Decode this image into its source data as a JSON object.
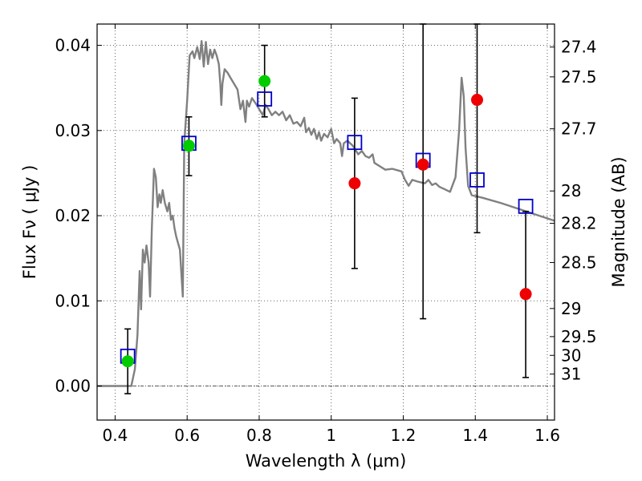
{
  "chart_data": {
    "type": "scatter",
    "title": "",
    "xlabel": "Wavelength  λ (μm)",
    "ylabel": "Flux  Fν  ( μJy )",
    "y2label": "Magnitude (AB)",
    "xlim": [
      0.35,
      1.62
    ],
    "ylim": [
      -0.004,
      0.0425
    ],
    "grid": true,
    "x_ticks": [
      0.4,
      0.6,
      0.8,
      1.0,
      1.2,
      1.4,
      1.6
    ],
    "x_tick_labels": [
      "0.4",
      "0.6",
      "0.8",
      "1",
      "1.2",
      "1.4",
      "1.6"
    ],
    "y_ticks": [
      0.0,
      0.01,
      0.02,
      0.03,
      0.04
    ],
    "y_tick_labels": [
      "0.00",
      "0.01",
      "0.02",
      "0.03",
      "0.04"
    ],
    "y2_ticks": [
      {
        "label": "27.4",
        "flux": 0.0398
      },
      {
        "label": "27.5",
        "flux": 0.0363
      },
      {
        "label": "27.7",
        "flux": 0.0302
      },
      {
        "label": "28",
        "flux": 0.0229
      },
      {
        "label": "28.2",
        "flux": 0.0191
      },
      {
        "label": "28.5",
        "flux": 0.0145
      },
      {
        "label": "29",
        "flux": 0.0091
      },
      {
        "label": "29.5",
        "flux": 0.0058
      },
      {
        "label": "30",
        "flux": 0.0036
      },
      {
        "label": "31",
        "flux": 0.0014
      }
    ],
    "series": [
      {
        "kind": "model_sed",
        "color": "#808080",
        "points": [
          [
            0.35,
            0.0
          ],
          [
            0.43,
            0.0
          ],
          [
            0.445,
            0.0
          ],
          [
            0.455,
            0.002
          ],
          [
            0.462,
            0.006
          ],
          [
            0.468,
            0.0135
          ],
          [
            0.472,
            0.009
          ],
          [
            0.477,
            0.016
          ],
          [
            0.482,
            0.0145
          ],
          [
            0.487,
            0.0165
          ],
          [
            0.493,
            0.0145
          ],
          [
            0.497,
            0.0105
          ],
          [
            0.502,
            0.0185
          ],
          [
            0.508,
            0.0255
          ],
          [
            0.513,
            0.0245
          ],
          [
            0.518,
            0.021
          ],
          [
            0.523,
            0.0225
          ],
          [
            0.527,
            0.0215
          ],
          [
            0.532,
            0.023
          ],
          [
            0.538,
            0.0215
          ],
          [
            0.545,
            0.0205
          ],
          [
            0.55,
            0.0215
          ],
          [
            0.555,
            0.0195
          ],
          [
            0.56,
            0.02
          ],
          [
            0.565,
            0.0185
          ],
          [
            0.57,
            0.0175
          ],
          [
            0.58,
            0.016
          ],
          [
            0.588,
            0.0105
          ],
          [
            0.592,
            0.0285
          ],
          [
            0.6,
            0.0335
          ],
          [
            0.607,
            0.0388
          ],
          [
            0.615,
            0.0393
          ],
          [
            0.62,
            0.0385
          ],
          [
            0.628,
            0.0398
          ],
          [
            0.635,
            0.0384
          ],
          [
            0.64,
            0.0405
          ],
          [
            0.646,
            0.0375
          ],
          [
            0.652,
            0.0404
          ],
          [
            0.658,
            0.0378
          ],
          [
            0.664,
            0.0395
          ],
          [
            0.67,
            0.0385
          ],
          [
            0.676,
            0.0395
          ],
          [
            0.682,
            0.0388
          ],
          [
            0.688,
            0.0378
          ],
          [
            0.692,
            0.0355
          ],
          [
            0.695,
            0.033
          ],
          [
            0.698,
            0.0355
          ],
          [
            0.704,
            0.0372
          ],
          [
            0.712,
            0.0368
          ],
          [
            0.72,
            0.0362
          ],
          [
            0.73,
            0.0355
          ],
          [
            0.74,
            0.0348
          ],
          [
            0.748,
            0.0325
          ],
          [
            0.755,
            0.0335
          ],
          [
            0.762,
            0.031
          ],
          [
            0.766,
            0.0335
          ],
          [
            0.772,
            0.0328
          ],
          [
            0.78,
            0.0338
          ],
          [
            0.79,
            0.0332
          ],
          [
            0.8,
            0.0325
          ],
          [
            0.81,
            0.0318
          ],
          [
            0.818,
            0.033
          ],
          [
            0.826,
            0.0325
          ],
          [
            0.835,
            0.0318
          ],
          [
            0.845,
            0.0322
          ],
          [
            0.855,
            0.0318
          ],
          [
            0.865,
            0.0322
          ],
          [
            0.875,
            0.0312
          ],
          [
            0.885,
            0.0318
          ],
          [
            0.895,
            0.0308
          ],
          [
            0.905,
            0.031
          ],
          [
            0.915,
            0.0305
          ],
          [
            0.925,
            0.0315
          ],
          [
            0.93,
            0.0298
          ],
          [
            0.938,
            0.0303
          ],
          [
            0.945,
            0.0295
          ],
          [
            0.952,
            0.0302
          ],
          [
            0.96,
            0.029
          ],
          [
            0.966,
            0.0298
          ],
          [
            0.972,
            0.0288
          ],
          [
            0.98,
            0.0296
          ],
          [
            0.99,
            0.0292
          ],
          [
            1.0,
            0.0302
          ],
          [
            1.008,
            0.0285
          ],
          [
            1.015,
            0.029
          ],
          [
            1.025,
            0.0285
          ],
          [
            1.03,
            0.027
          ],
          [
            1.035,
            0.0285
          ],
          [
            1.045,
            0.0288
          ],
          [
            1.06,
            0.0282
          ],
          [
            1.075,
            0.0272
          ],
          [
            1.085,
            0.0276
          ],
          [
            1.095,
            0.027
          ],
          [
            1.105,
            0.0268
          ],
          [
            1.115,
            0.0272
          ],
          [
            1.12,
            0.0262
          ],
          [
            1.135,
            0.0258
          ],
          [
            1.15,
            0.0254
          ],
          [
            1.17,
            0.0255
          ],
          [
            1.195,
            0.0252
          ],
          [
            1.205,
            0.0242
          ],
          [
            1.215,
            0.0235
          ],
          [
            1.225,
            0.0242
          ],
          [
            1.24,
            0.024
          ],
          [
            1.26,
            0.0238
          ],
          [
            1.27,
            0.0242
          ],
          [
            1.28,
            0.0236
          ],
          [
            1.29,
            0.0238
          ],
          [
            1.3,
            0.0234
          ],
          [
            1.315,
            0.0231
          ],
          [
            1.33,
            0.0228
          ],
          [
            1.345,
            0.0245
          ],
          [
            1.355,
            0.03
          ],
          [
            1.362,
            0.0362
          ],
          [
            1.368,
            0.034
          ],
          [
            1.373,
            0.028
          ],
          [
            1.38,
            0.0235
          ],
          [
            1.39,
            0.0224
          ],
          [
            1.42,
            0.0221
          ],
          [
            1.47,
            0.0215
          ],
          [
            1.52,
            0.0208
          ],
          [
            1.57,
            0.0201
          ],
          [
            1.62,
            0.0194
          ]
        ]
      },
      {
        "kind": "model_band_flux",
        "color": "#0000cc",
        "marker": "square",
        "points": [
          [
            0.435,
            0.0035
          ],
          [
            0.605,
            0.0285
          ],
          [
            0.815,
            0.0337
          ],
          [
            1.065,
            0.0286
          ],
          [
            1.255,
            0.0265
          ],
          [
            1.405,
            0.0242
          ],
          [
            1.54,
            0.0211
          ]
        ]
      },
      {
        "kind": "observed_detection",
        "color": "#00cc00",
        "marker": "circle",
        "points": [
          {
            "x": 0.435,
            "y": 0.0029,
            "err_lo": -0.0009,
            "err_hi": 0.0067
          },
          {
            "x": 0.605,
            "y": 0.0282,
            "err_lo": 0.0247,
            "err_hi": 0.0316
          },
          {
            "x": 0.815,
            "y": 0.0358,
            "err_lo": 0.0316,
            "err_hi": 0.04
          }
        ]
      },
      {
        "kind": "observed_low_significance",
        "color": "#ee0000",
        "marker": "circle",
        "points": [
          {
            "x": 1.065,
            "y": 0.0238,
            "err_lo": 0.0138,
            "err_hi": 0.0338
          },
          {
            "x": 1.255,
            "y": 0.026,
            "err_lo": 0.0079,
            "err_hi": 0.0425
          },
          {
            "x": 1.405,
            "y": 0.0336,
            "err_lo": 0.018,
            "err_hi": 0.0425
          },
          {
            "x": 1.54,
            "y": 0.0108,
            "err_lo": 0.001,
            "err_hi": 0.0205
          }
        ]
      }
    ]
  }
}
